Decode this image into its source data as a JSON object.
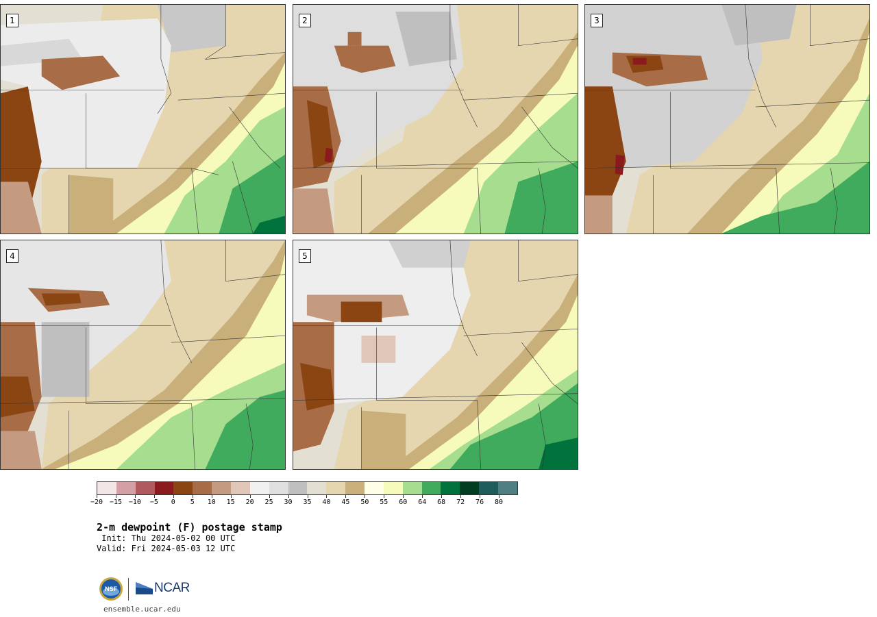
{
  "panels": [
    {
      "label": "1"
    },
    {
      "label": "2"
    },
    {
      "label": "3"
    },
    {
      "label": "4"
    },
    {
      "label": "5"
    }
  ],
  "colorbar": {
    "colors": [
      "#f3e6e6",
      "#d4a0a6",
      "#b05a60",
      "#8b1a1f",
      "#8b4513",
      "#a86d47",
      "#c49a80",
      "#e0c6b8",
      "#f0f0f0",
      "#e0e0e0",
      "#bfbfbf",
      "#e3e0d3",
      "#e6d6b0",
      "#c9b07a",
      "#ffffe5",
      "#f6fbbb",
      "#a6dd8f",
      "#41ab5d",
      "#00723b",
      "#003d21",
      "#1f5c5c",
      "#4f7f82"
    ],
    "tick_labels": [
      "−20",
      "−15",
      "−10",
      "−5",
      "0",
      "5",
      "10",
      "15",
      "20",
      "25",
      "30",
      "35",
      "40",
      "45",
      "50",
      "55",
      "60",
      "64",
      "68",
      "72",
      "76",
      "80"
    ]
  },
  "title": "2-m dewpoint (F) postage stamp",
  "init": " Init: Thu 2024-05-02 00 UTC",
  "valid": "Valid: Fri 2024-05-03 12 UTC",
  "logos": {
    "nsf": "NSF",
    "ncar": "NCAR"
  },
  "site": "ensemble.ucar.edu"
}
